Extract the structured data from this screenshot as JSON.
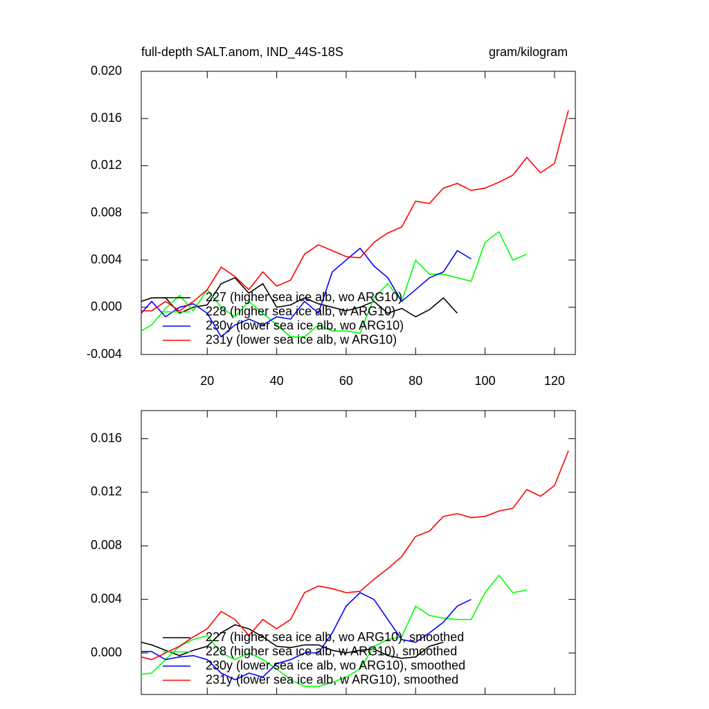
{
  "chart_data": [
    {
      "type": "line",
      "title": "full-depth SALT.anom, IND_44S-18S",
      "units": "gram/kilogram",
      "x": [
        1,
        4,
        8,
        12,
        16,
        20,
        24,
        28,
        32,
        36,
        40,
        44,
        48,
        52,
        56,
        60,
        64,
        68,
        72,
        76,
        80,
        84,
        88,
        92,
        96,
        100,
        104,
        108,
        112,
        116,
        120,
        124
      ],
      "xlim": [
        1,
        126
      ],
      "xticks": [
        20,
        40,
        60,
        80,
        100,
        120
      ],
      "xtick_labels": true,
      "ylim": [
        -0.004,
        0.02
      ],
      "yticks": [
        {
          "value": -0.004,
          "label": "-0.004"
        },
        {
          "value": 0.0,
          "label": "0.000"
        },
        {
          "value": 0.004,
          "label": "0.004"
        },
        {
          "value": 0.008,
          "label": "0.008"
        },
        {
          "value": 0.012,
          "label": "0.012"
        },
        {
          "value": 0.016,
          "label": "0.016"
        },
        {
          "value": 0.02,
          "label": "0.020"
        }
      ],
      "series": [
        {
          "name": "227 (higher sea ice alb, wo ARG10)",
          "color": "#000000",
          "values": [
            0.0005,
            0.0008,
            0.0008,
            -0.0005,
            0.0,
            0.0002,
            0.002,
            0.0025,
            0.0012,
            0.002,
            0.0,
            0.0002,
            0.0008,
            0.0003,
            0.0,
            -0.0003,
            0.0,
            0.0005,
            -0.0005,
            -0.0001,
            -0.0008,
            -0.0002,
            0.0008,
            -0.0005,
            null,
            null,
            null,
            null,
            null,
            null,
            null,
            null
          ]
        },
        {
          "name": "228 (higher sea ice alb, w ARG10)",
          "color": "#00ff00",
          "values": [
            -0.002,
            -0.0015,
            -0.0001,
            0.001,
            -0.0003,
            0.0015,
            0.0,
            -0.0008,
            0.0005,
            -0.0005,
            -0.0015,
            -0.0025,
            -0.0025,
            -0.0015,
            -0.002,
            -0.002,
            -0.0022,
            0.0008,
            0.002,
            0.0005,
            0.004,
            0.0028,
            0.0028,
            0.0025,
            0.0022,
            0.0055,
            0.0064,
            0.004,
            0.0045,
            null,
            null,
            null
          ]
        },
        {
          "name": "230y (lower sea ice alb, wo ARG10)",
          "color": "#0000ff",
          "values": [
            -0.0005,
            0.0005,
            -0.0008,
            0.0,
            0.0003,
            -0.0005,
            -0.0025,
            -0.0015,
            -0.001,
            -0.0015,
            -0.0008,
            -0.001,
            0.0005,
            -0.0005,
            0.003,
            0.004,
            0.005,
            0.0035,
            0.0025,
            0.0005,
            0.0015,
            0.0025,
            0.003,
            0.0048,
            0.0041,
            null,
            null,
            null,
            null,
            null,
            null,
            null
          ]
        },
        {
          "name": "231y (lower sea ice alb, w ARG10)",
          "color": "#ff0000",
          "values": [
            -0.0003,
            -0.0003,
            0.0005,
            -0.0003,
            0.0005,
            0.0015,
            0.0034,
            0.0026,
            0.0015,
            0.003,
            0.0018,
            0.0023,
            0.0045,
            0.0053,
            0.0048,
            0.0043,
            0.0042,
            0.0055,
            0.0063,
            0.0068,
            0.009,
            0.0088,
            0.0101,
            0.0105,
            0.0099,
            0.0101,
            0.0106,
            0.0112,
            0.0127,
            0.0114,
            0.0122,
            0.0167
          ]
        }
      ]
    },
    {
      "type": "line",
      "x": [
        1,
        4,
        8,
        12,
        16,
        20,
        24,
        28,
        32,
        36,
        40,
        44,
        48,
        52,
        56,
        60,
        64,
        68,
        72,
        76,
        80,
        84,
        88,
        92,
        96,
        100,
        104,
        108,
        112,
        116,
        120,
        124
      ],
      "xlim": [
        1,
        126
      ],
      "xticks": [
        20,
        40,
        60,
        80,
        100,
        120
      ],
      "xtick_labels": false,
      "ylim": [
        -0.0031,
        0.0181
      ],
      "yticks": [
        {
          "value": 0.0,
          "label": "0.000"
        },
        {
          "value": 0.004,
          "label": "0.004"
        },
        {
          "value": 0.008,
          "label": "0.008"
        },
        {
          "value": 0.012,
          "label": "0.012"
        },
        {
          "value": 0.016,
          "label": "0.016"
        }
      ],
      "series": [
        {
          "name": "227 (higher sea ice alb, wo ARG10), smoothed",
          "color": "#000000",
          "values": [
            0.0008,
            0.0006,
            0.0002,
            -0.0002,
            0.0002,
            0.0005,
            0.0015,
            0.0021,
            0.0018,
            0.0012,
            0.0005,
            0.0004,
            0.0006,
            0.0006,
            0.0002,
            0.0,
            0.0002,
            0.0003,
            -0.0002,
            -0.0004,
            -0.0003,
            0.0005,
            0.0008,
            null,
            null,
            null,
            null,
            null,
            null,
            null,
            null,
            null
          ]
        },
        {
          "name": "228 (higher sea ice alb, w ARG10), smoothed",
          "color": "#00ff00",
          "values": [
            -0.0016,
            -0.0015,
            -0.0005,
            0.0005,
            0.001,
            0.0013,
            0.0,
            -0.0005,
            0.0,
            -0.0005,
            -0.0012,
            -0.002,
            -0.0025,
            -0.0025,
            -0.0022,
            -0.0018,
            -0.0012,
            0.0005,
            0.001,
            0.0012,
            0.0035,
            0.0028,
            0.0026,
            0.0025,
            0.0025,
            0.0045,
            0.0058,
            0.0045,
            0.0047,
            null,
            null,
            null
          ]
        },
        {
          "name": "230y (lower sea ice alb, wo ARG10), smoothed",
          "color": "#0000ff",
          "values": [
            0.0001,
            0.0001,
            -0.0005,
            -0.0003,
            -0.0002,
            -0.0005,
            -0.0015,
            -0.002,
            -0.0015,
            -0.0018,
            -0.0008,
            -0.0005,
            0.0,
            0.0,
            0.0015,
            0.0035,
            0.0045,
            0.004,
            0.0025,
            0.001,
            0.0008,
            0.0015,
            0.0023,
            0.0035,
            0.004,
            null,
            null,
            null,
            null,
            null,
            null,
            null
          ]
        },
        {
          "name": "231y (lower sea ice alb, w ARG10), smoothed",
          "color": "#ff0000",
          "values": [
            -0.0003,
            -0.0005,
            0.0,
            0.0005,
            0.0012,
            0.0018,
            0.0031,
            0.0025,
            0.0013,
            0.0025,
            0.0018,
            0.0025,
            0.0045,
            0.005,
            0.0048,
            0.0045,
            0.0046,
            0.0055,
            0.0063,
            0.0072,
            0.0087,
            0.0091,
            0.0102,
            0.0104,
            0.0101,
            0.0102,
            0.0106,
            0.0108,
            0.0122,
            0.0117,
            0.0125,
            0.0151
          ]
        }
      ]
    }
  ]
}
